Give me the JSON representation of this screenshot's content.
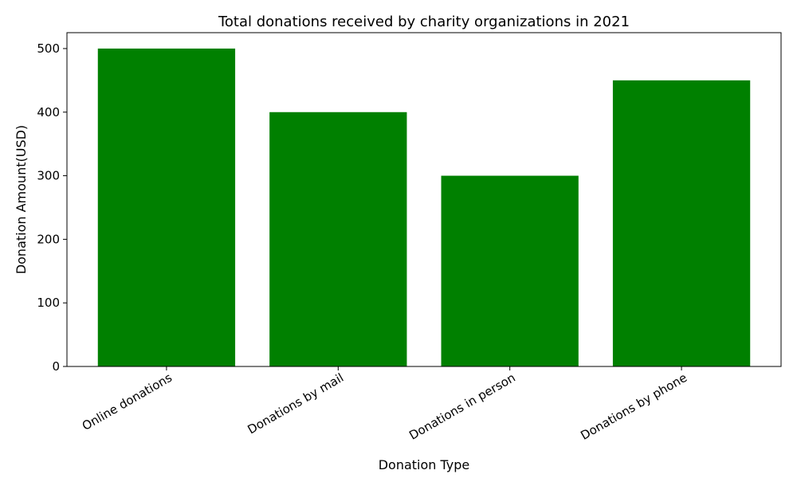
{
  "chart_data": {
    "type": "bar",
    "title": "Total donations received by charity organizations in 2021",
    "xlabel": "Donation Type",
    "ylabel": "Donation Amount(USD)",
    "categories": [
      "Online donations",
      "Donations by mail",
      "Donations in person",
      "Donations by phone"
    ],
    "values": [
      500,
      400,
      300,
      450
    ],
    "ylim": [
      0,
      525
    ],
    "yticks": [
      0,
      100,
      200,
      300,
      400,
      500
    ],
    "bar_color": "#008000",
    "grid": false,
    "legend": "none"
  }
}
